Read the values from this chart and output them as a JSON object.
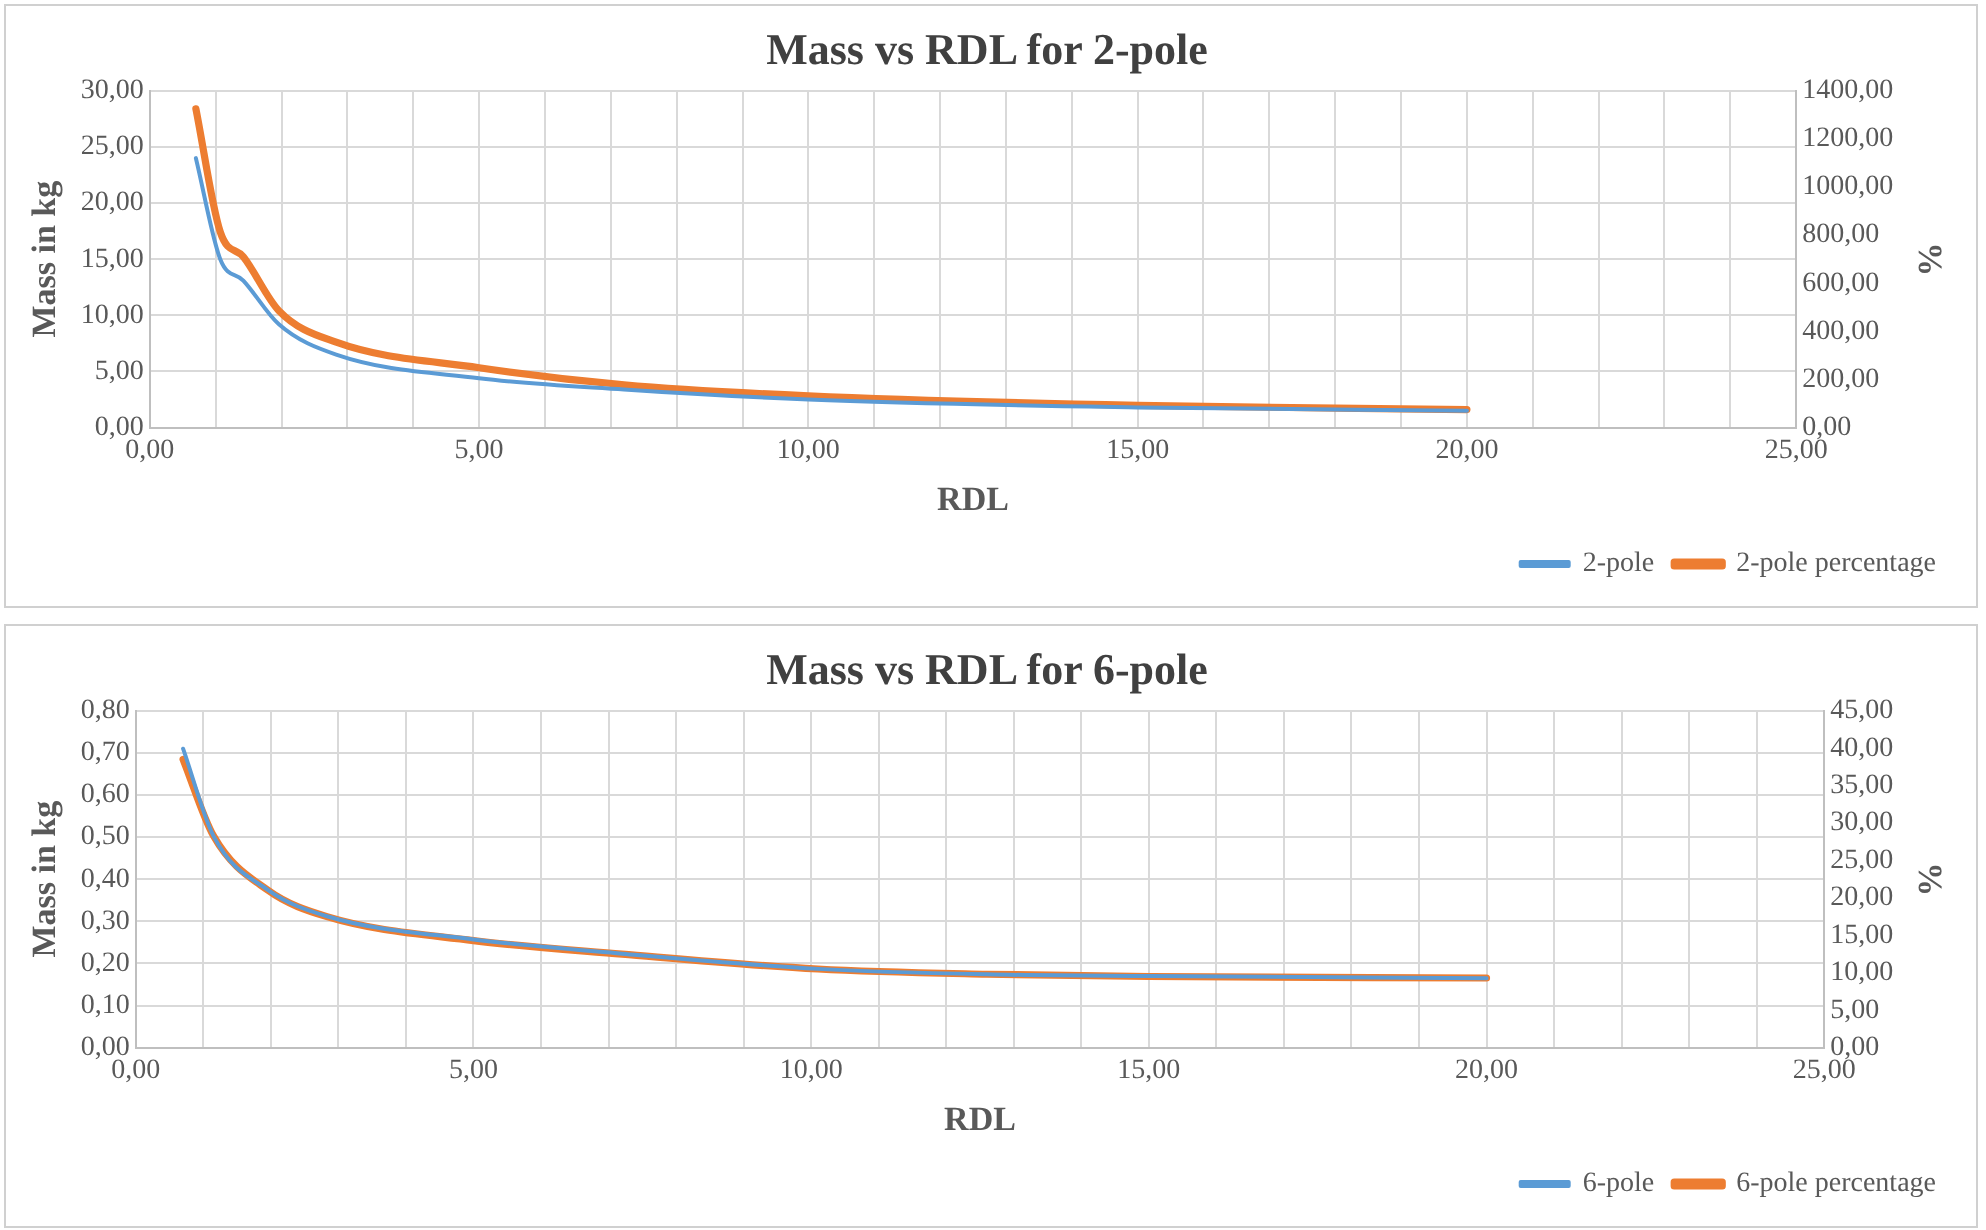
{
  "chart_data": [
    {
      "type": "line",
      "title": "Mass vs RDL for 2-pole",
      "xlabel": "RDL",
      "ylabel": "Mass in kg",
      "y2label": "%",
      "legend": "bottom right",
      "grid": true,
      "marker": "none",
      "line_style": "solid",
      "x": [
        0.7,
        1.07,
        1.42,
        1.96,
        2.83,
        5,
        7.2,
        10,
        15,
        20
      ],
      "xlim": [
        0,
        25
      ],
      "xticks": [
        {
          "value": 0,
          "label": "0,00"
        },
        {
          "value": 1,
          "label": null
        },
        {
          "value": 2,
          "label": null
        },
        {
          "value": 3,
          "label": null
        },
        {
          "value": 4,
          "label": null
        },
        {
          "value": 5,
          "label": "5,00"
        },
        {
          "value": 6,
          "label": null
        },
        {
          "value": 7,
          "label": null
        },
        {
          "value": 8,
          "label": null
        },
        {
          "value": 9,
          "label": null
        },
        {
          "value": 10,
          "label": "10,00"
        },
        {
          "value": 11,
          "label": null
        },
        {
          "value": 12,
          "label": null
        },
        {
          "value": 13,
          "label": null
        },
        {
          "value": 14,
          "label": null
        },
        {
          "value": 15,
          "label": "15,00"
        },
        {
          "value": 16,
          "label": null
        },
        {
          "value": 17,
          "label": null
        },
        {
          "value": 18,
          "label": null
        },
        {
          "value": 19,
          "label": null
        },
        {
          "value": 20,
          "label": "20,00"
        },
        {
          "value": 21,
          "label": null
        },
        {
          "value": 22,
          "label": null
        },
        {
          "value": 23,
          "label": null
        },
        {
          "value": 24,
          "label": null
        },
        {
          "value": 25,
          "label": "25,00"
        }
      ],
      "ylim": [
        0,
        30
      ],
      "yticks": [
        {
          "value": 0,
          "label": "0,00"
        },
        {
          "value": 5,
          "label": "5,00"
        },
        {
          "value": 10,
          "label": "10,00"
        },
        {
          "value": 15,
          "label": "15,00"
        },
        {
          "value": 20,
          "label": "20,00"
        },
        {
          "value": 25,
          "label": "25,00"
        },
        {
          "value": 30,
          "label": "30,00"
        }
      ],
      "y2lim": [
        0,
        1400
      ],
      "y2ticks": [
        {
          "value": 0,
          "label": "0,00"
        },
        {
          "value": 200,
          "label": "200,00"
        },
        {
          "value": 400,
          "label": "400,00"
        },
        {
          "value": 600,
          "label": "600,00"
        },
        {
          "value": 800,
          "label": "800,00"
        },
        {
          "value": 1000,
          "label": "1000,00"
        },
        {
          "value": 1200,
          "label": "1200,00"
        },
        {
          "value": 1400,
          "label": "1400,00"
        }
      ],
      "series": [
        {
          "name": "2-pole",
          "color": "#5b9bd5",
          "values": [
            24.0,
            15.0,
            13.1,
            9.2,
            6.5,
            4.4,
            3.4,
            2.5,
            1.8,
            1.5
          ]
        },
        {
          "name": "2-pole percentage",
          "color": "#ed7d31",
          "axis": "y2",
          "values": [
            1325,
            813,
            710,
            486,
            355,
            249,
            178,
            132,
            92,
            75
          ]
        }
      ]
    },
    {
      "type": "line",
      "title": "Mass vs RDL for 6-pole",
      "xlabel": "RDL",
      "ylabel": "Mass in kg",
      "y2label": "%",
      "legend": "bottom right",
      "grid": true,
      "marker": "none",
      "line_style": "solid",
      "x": [
        0.7,
        1.15,
        1.96,
        2.83,
        5,
        7.2,
        10.1,
        12.6,
        15,
        20
      ],
      "xlim": [
        0,
        25
      ],
      "xticks": [
        {
          "value": 0,
          "label": "0,00"
        },
        {
          "value": 1,
          "label": null
        },
        {
          "value": 2,
          "label": null
        },
        {
          "value": 3,
          "label": null
        },
        {
          "value": 4,
          "label": null
        },
        {
          "value": 5,
          "label": "5,00"
        },
        {
          "value": 6,
          "label": null
        },
        {
          "value": 7,
          "label": null
        },
        {
          "value": 8,
          "label": null
        },
        {
          "value": 9,
          "label": null
        },
        {
          "value": 10,
          "label": "10,00"
        },
        {
          "value": 11,
          "label": null
        },
        {
          "value": 12,
          "label": null
        },
        {
          "value": 13,
          "label": null
        },
        {
          "value": 14,
          "label": null
        },
        {
          "value": 15,
          "label": "15,00"
        },
        {
          "value": 16,
          "label": null
        },
        {
          "value": 17,
          "label": null
        },
        {
          "value": 18,
          "label": null
        },
        {
          "value": 19,
          "label": null
        },
        {
          "value": 20,
          "label": "20,00"
        },
        {
          "value": 21,
          "label": null
        },
        {
          "value": 22,
          "label": null
        },
        {
          "value": 23,
          "label": null
        },
        {
          "value": 24,
          "label": null
        },
        {
          "value": 25,
          "label": "25,00"
        }
      ],
      "ylim": [
        0,
        0.8
      ],
      "yticks": [
        {
          "value": 0,
          "label": "0,00"
        },
        {
          "value": 0.1,
          "label": "0,10"
        },
        {
          "value": 0.2,
          "label": "0,20"
        },
        {
          "value": 0.3,
          "label": "0,30"
        },
        {
          "value": 0.4,
          "label": "0,40"
        },
        {
          "value": 0.5,
          "label": "0,50"
        },
        {
          "value": 0.6,
          "label": "0,60"
        },
        {
          "value": 0.7,
          "label": "0,70"
        },
        {
          "value": 0.8,
          "label": "0,80"
        }
      ],
      "y2lim": [
        0,
        45
      ],
      "y2ticks": [
        {
          "value": 0,
          "label": "0,00"
        },
        {
          "value": 5,
          "label": "5,00"
        },
        {
          "value": 10,
          "label": "10,00"
        },
        {
          "value": 15,
          "label": "15,00"
        },
        {
          "value": 20,
          "label": "20,00"
        },
        {
          "value": 25,
          "label": "25,00"
        },
        {
          "value": 30,
          "label": "30,00"
        },
        {
          "value": 35,
          "label": "35,00"
        },
        {
          "value": 40,
          "label": "40,00"
        },
        {
          "value": 45,
          "label": "45,00"
        }
      ],
      "series": [
        {
          "name": "6-pole",
          "color": "#5b9bd5",
          "values": [
            0.71,
            0.503,
            0.374,
            0.312,
            0.257,
            0.223,
            0.187,
            0.174,
            0.17,
            0.165
          ]
        },
        {
          "name": "6-pole percentage",
          "color": "#ed7d31",
          "axis": "y2",
          "values": [
            38.5,
            28.3,
            21.0,
            17.5,
            14.3,
            12.5,
            10.5,
            9.8,
            9.5,
            9.3
          ]
        }
      ]
    }
  ]
}
